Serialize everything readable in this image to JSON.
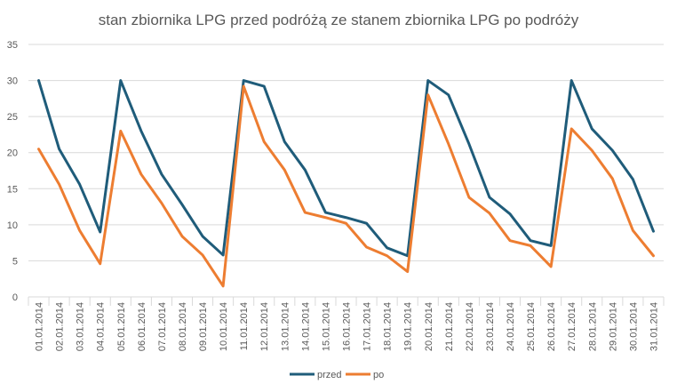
{
  "chart_data": {
    "type": "line",
    "title": "stan zbiornika LPG przed podróżą ze stanem zbiornika LPG po podróży",
    "xlabel": "",
    "ylabel": "",
    "ylim": [
      0,
      35
    ],
    "yticks": [
      "0",
      "5",
      "10",
      "15",
      "20",
      "25",
      "30",
      "35"
    ],
    "grid": true,
    "legend_position": "bottom",
    "categories": [
      "01.01.2014",
      "02.01.2014",
      "03.01.2014",
      "04.01.2014",
      "05.01.2014",
      "06.01.2014",
      "07.01.2014",
      "08.01.2014",
      "09.01.2014",
      "10.01.2014",
      "11.01.2014",
      "12.01.2014",
      "13.01.2014",
      "14.01.2014",
      "15.01.2014",
      "16.01.2014",
      "17.01.2014",
      "18.01.2014",
      "19.01.2014",
      "20.01.2014",
      "21.01.2014",
      "22.01.2014",
      "23.01.2014",
      "24.01.2014",
      "25.01.2014",
      "26.01.2014",
      "27.01.2014",
      "28.01.2014",
      "29.01.2014",
      "30.01.2014",
      "31.01.2014"
    ],
    "series": [
      {
        "name": "przed",
        "color": "#1f5c7a",
        "values": [
          30,
          20.5,
          15.6,
          9,
          30,
          23,
          17,
          12.8,
          8.4,
          5.8,
          30,
          29.2,
          21.5,
          17.6,
          11.7,
          11,
          10.2,
          6.8,
          5.7,
          30,
          28,
          21.2,
          13.8,
          11.5,
          7.8,
          7.1,
          30,
          23.3,
          20.3,
          16.3,
          9.1
        ]
      },
      {
        "name": "po",
        "color": "#ed7d31",
        "values": [
          20.5,
          15.6,
          9.2,
          4.6,
          23,
          17,
          13,
          8.4,
          5.8,
          1.5,
          29.2,
          21.5,
          17.6,
          11.7,
          11,
          10.2,
          6.9,
          5.7,
          3.5,
          28,
          21.2,
          13.8,
          11.6,
          7.8,
          7.1,
          4.2,
          23.3,
          20.3,
          16.4,
          9.2,
          5.7
        ]
      }
    ]
  }
}
